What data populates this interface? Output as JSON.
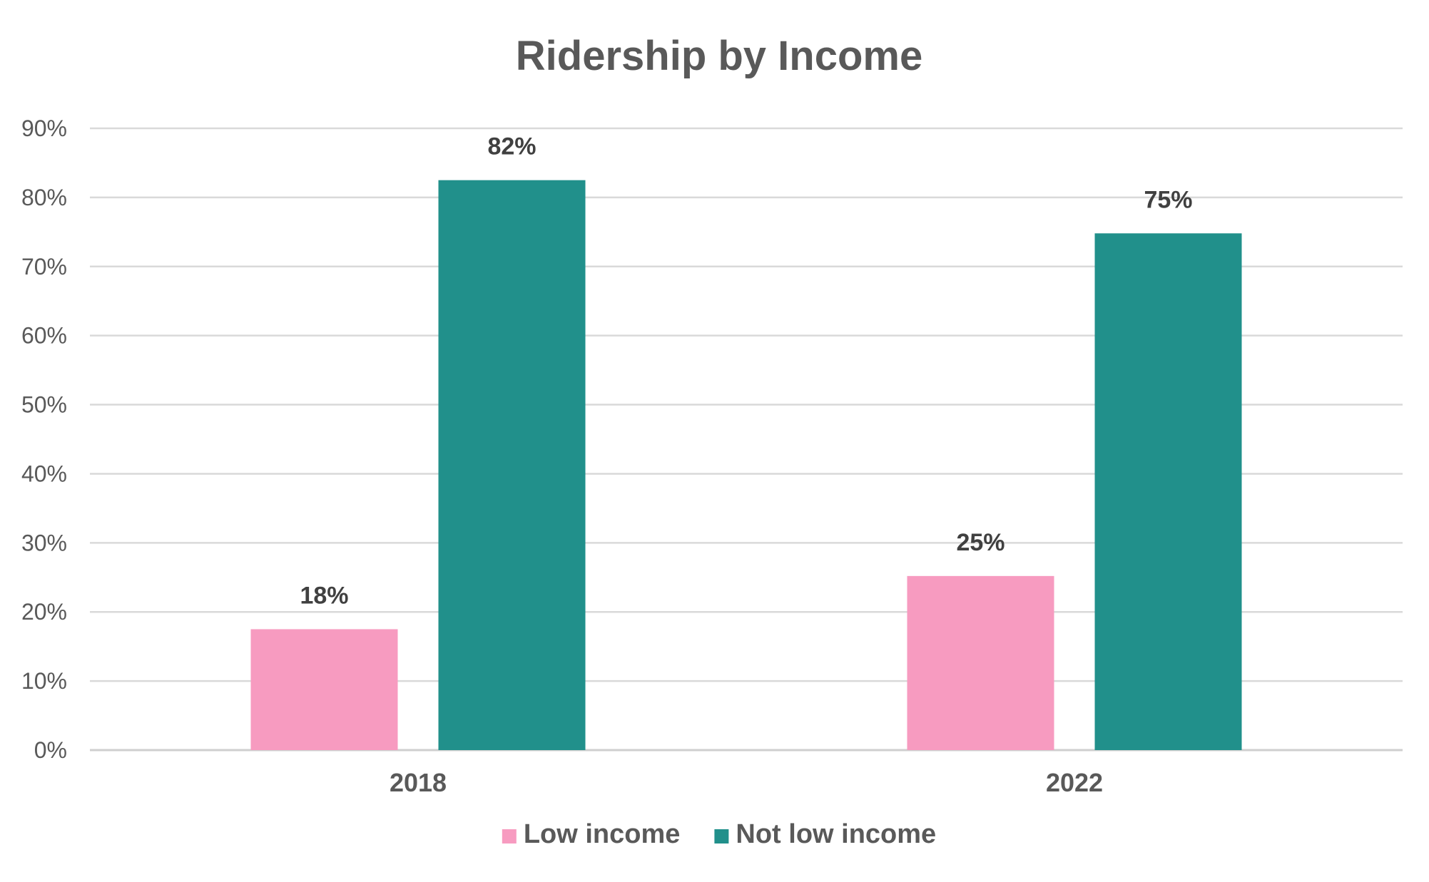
{
  "chart_data": {
    "type": "bar",
    "title": "Ridership by Income",
    "categories": [
      "2018",
      "2022"
    ],
    "series": [
      {
        "name": "Low income",
        "color": "#f79bc0",
        "values": [
          17.5,
          25.2
        ],
        "labels": [
          "18%",
          "25%"
        ]
      },
      {
        "name": "Not low income",
        "color": "#21908b",
        "values": [
          82.5,
          74.8
        ],
        "labels": [
          "82%",
          "75%"
        ]
      }
    ],
    "ylim": [
      0,
      90
    ],
    "yticks": [
      0,
      10,
      20,
      30,
      40,
      50,
      60,
      70,
      80,
      90
    ],
    "ytick_labels": [
      "0%",
      "10%",
      "20%",
      "30%",
      "40%",
      "50%",
      "60%",
      "70%",
      "80%",
      "90%"
    ],
    "grid": true,
    "legend": "bottom"
  }
}
